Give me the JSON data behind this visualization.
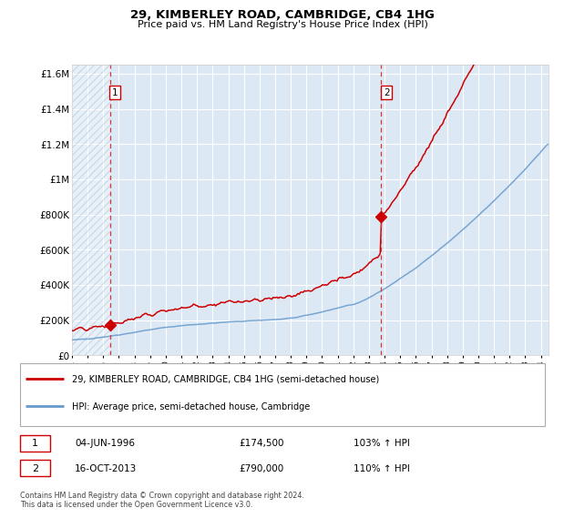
{
  "title": "29, KIMBERLEY ROAD, CAMBRIDGE, CB4 1HG",
  "subtitle": "Price paid vs. HM Land Registry's House Price Index (HPI)",
  "bg_color": "#dce9f5",
  "sale1_price": 174500,
  "sale1_year": 1996.42,
  "sale2_price": 790000,
  "sale2_year": 2013.79,
  "ylim": [
    0,
    1650000
  ],
  "yticks": [
    0,
    200000,
    400000,
    600000,
    800000,
    1000000,
    1200000,
    1400000,
    1600000
  ],
  "ytick_labels": [
    "£0",
    "£200K",
    "£400K",
    "£600K",
    "£800K",
    "£1M",
    "£1.2M",
    "£1.4M",
    "£1.6M"
  ],
  "legend_red": "29, KIMBERLEY ROAD, CAMBRIDGE, CB4 1HG (semi-detached house)",
  "legend_blue": "HPI: Average price, semi-detached house, Cambridge",
  "footer": "Contains HM Land Registry data © Crown copyright and database right 2024.\nThis data is licensed under the Open Government Licence v3.0.",
  "table_rows": [
    {
      "num": "1",
      "date": "04-JUN-1996",
      "price": "£174,500",
      "hpi": "103% ↑ HPI"
    },
    {
      "num": "2",
      "date": "16-OCT-2013",
      "price": "£790,000",
      "hpi": "110% ↑ HPI"
    }
  ],
  "red_line_color": "#cc0000",
  "blue_line_color": "#6699cc",
  "marker_color": "#cc0000",
  "dashed_color": "#dd3333",
  "xlim_start": 1994.0,
  "xlim_end": 2024.5
}
